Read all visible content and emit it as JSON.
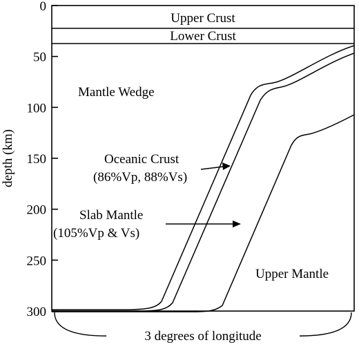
{
  "figure": {
    "y_axis_label": "depth (km)",
    "y_ticks": [
      {
        "value": 0,
        "label": "0"
      },
      {
        "value": 50,
        "label": "50"
      },
      {
        "value": 100,
        "label": "100"
      },
      {
        "value": 150,
        "label": "150"
      },
      {
        "value": 200,
        "label": "200"
      },
      {
        "value": 250,
        "label": "250"
      },
      {
        "value": 300,
        "label": "300"
      }
    ],
    "x_bracket_label": "3 degrees of longitude",
    "layers": {
      "upper_crust": "Upper Crust",
      "lower_crust": "Lower Crust",
      "upper_crust_base_km": 20,
      "lower_crust_base_km": 35
    },
    "regions": {
      "mantle_wedge": "Mantle Wedge",
      "oceanic_crust_title": "Oceanic Crust",
      "oceanic_crust_props": "(86%Vp, 88%Vs)",
      "slab_mantle_title": "Slab Mantle",
      "slab_mantle_props": "(105%Vp & Vs)",
      "upper_mantle": "Upper Mantle"
    },
    "colors": {
      "ink": "#000000",
      "background": "#ffffff"
    }
  }
}
